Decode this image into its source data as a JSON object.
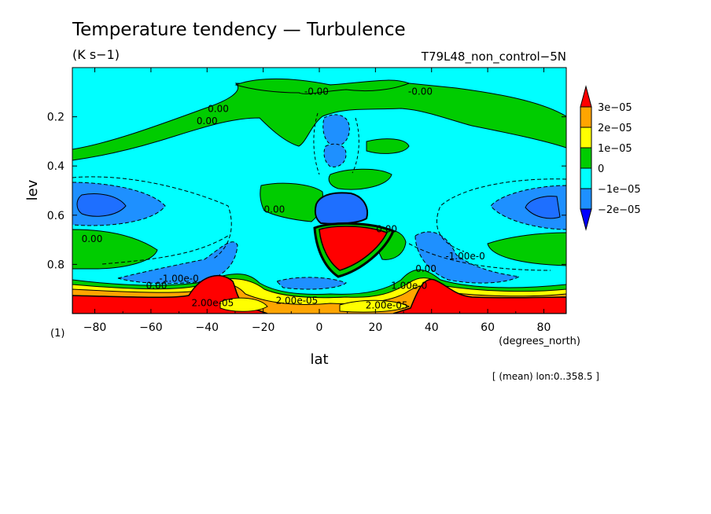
{
  "title": "Temperature tendency — Turbulence",
  "units": "(K s−1)",
  "run_label": "T79L48_non_control−5N",
  "mean_note": "[ (mean) lon:0..358.5 ]",
  "panel_label": "(1)",
  "chart_data": {
    "type": "heatmap",
    "xlabel": "lat",
    "x_unit": "(degrees_north)",
    "ylabel": "lev",
    "xlim": [
      -88,
      88
    ],
    "ylim": [
      1.0,
      0.0
    ],
    "x_ticks": [
      -80,
      -60,
      -40,
      -20,
      0,
      20,
      40,
      60,
      80
    ],
    "x_tick_labels": [
      "−80",
      "−60",
      "−40",
      "−20",
      "0",
      "20",
      "40",
      "60",
      "80"
    ],
    "y_ticks": [
      0.2,
      0.4,
      0.6,
      0.8
    ],
    "y_tick_labels": [
      "0.2",
      "0.4",
      "0.6",
      "0.8"
    ],
    "colorbar": {
      "levels": [
        "3e−05",
        "2e−05",
        "1e−05",
        "0",
        "−1e−05",
        "−2e−05"
      ],
      "colors": [
        "#ff0000",
        "#ffa500",
        "#ffff00",
        "#00cc00",
        "#00ffff",
        "#1e90ff",
        "#0000ff"
      ]
    },
    "contour_labels": [
      {
        "text": "0.00",
        "lat": -36,
        "lev": 0.18
      },
      {
        "text": "0.00",
        "lat": -40,
        "lev": 0.23
      },
      {
        "text": "-0.00",
        "lat": -1,
        "lev": 0.11
      },
      {
        "text": "-0.00",
        "lat": 36,
        "lev": 0.11
      },
      {
        "text": "0.00",
        "lat": -16,
        "lev": 0.59
      },
      {
        "text": "0.00",
        "lat": -81,
        "lev": 0.71
      },
      {
        "text": "0.00",
        "lat": 24,
        "lev": 0.67
      },
      {
        "text": "-1.00e-0",
        "lat": 52,
        "lev": 0.78
      },
      {
        "text": "0.00",
        "lat": 38,
        "lev": 0.83
      },
      {
        "text": "-1.00e-0",
        "lat": -50,
        "lev": 0.87
      },
      {
        "text": "0.00",
        "lat": -58,
        "lev": 0.9
      },
      {
        "text": "2.00e-05",
        "lat": -38,
        "lev": 0.97
      },
      {
        "text": "2.00e-05",
        "lat": -8,
        "lev": 0.96
      },
      {
        "text": "1.00e-0",
        "lat": 32,
        "lev": 0.9
      },
      {
        "text": "2.00e-05",
        "lat": 24,
        "lev": 0.98
      }
    ]
  }
}
